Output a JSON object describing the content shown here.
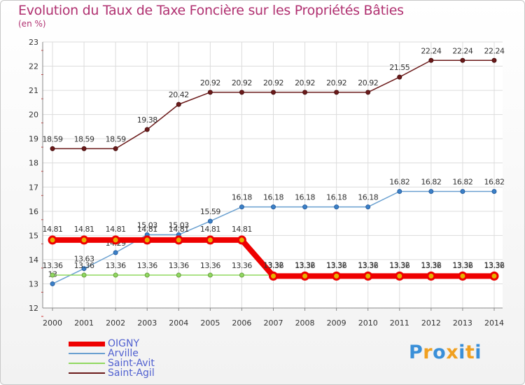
{
  "chart_data": {
    "type": "line",
    "title": "Evolution du Taux de Taxe Foncière sur les Propriétés Bâties",
    "unit_label": "(en %)",
    "xlabel": "",
    "ylabel": "",
    "ylim": [
      12,
      23
    ],
    "yticks": [
      "12",
      "13",
      "14",
      "15",
      "16",
      "17",
      "18",
      "19",
      "20",
      "21",
      "22",
      "23"
    ],
    "x": [
      "2000",
      "2001",
      "2002",
      "2003",
      "2004",
      "2005",
      "2006",
      "2007",
      "2008",
      "2009",
      "2010",
      "2011",
      "2012",
      "2013",
      "2014"
    ],
    "series": [
      {
        "name": "Saint-Agil",
        "color": "#6b1a1a",
        "values": [
          18.59,
          18.59,
          18.59,
          19.38,
          20.42,
          20.92,
          20.92,
          20.92,
          20.92,
          20.92,
          20.92,
          21.55,
          22.24,
          22.24,
          22.24
        ],
        "labels": [
          "18.59",
          "18.59",
          "18.59",
          "19.38",
          "20.42",
          "20.92",
          "20.92",
          "20.92",
          "20.92",
          "20.92",
          "20.92",
          "21.55",
          "22.24",
          "22.24",
          "22.24"
        ]
      },
      {
        "name": "Arville",
        "color": "#6aa0d0",
        "values": [
          13.0,
          13.63,
          14.29,
          15.03,
          15.03,
          15.59,
          16.18,
          16.18,
          16.18,
          16.18,
          16.18,
          16.82,
          16.82,
          16.82,
          16.82
        ],
        "labels": [
          "13",
          "13.63",
          "14.29",
          "15.03",
          "15.03",
          "15.59",
          "16.18",
          "16.18",
          "16.18",
          "16.18",
          "16.18",
          "16.82",
          "16.82",
          "16.82",
          "16.82"
        ]
      },
      {
        "name": "Saint-Avit",
        "color": "#90d860",
        "values": [
          13.36,
          13.36,
          13.36,
          13.36,
          13.36,
          13.36,
          13.36,
          13.36,
          13.36,
          13.36,
          13.36,
          13.36,
          13.36,
          13.36,
          13.36
        ],
        "labels": [
          "13.36",
          "13.36",
          "13.36",
          "13.36",
          "13.36",
          "13.36",
          "13.36",
          "13.36",
          "13.36",
          "13.36",
          "13.36",
          "13.36",
          "13.36",
          "13.36",
          "13.36"
        ]
      },
      {
        "name": "OIGNY",
        "color": "#ee0000",
        "values": [
          14.81,
          14.81,
          14.81,
          14.81,
          14.81,
          14.81,
          14.81,
          13.32,
          13.32,
          13.32,
          13.32,
          13.32,
          13.32,
          13.32,
          13.32
        ],
        "labels": [
          "14.81",
          "14.81",
          "14.81",
          "14.81",
          "14.81",
          "14.81",
          "14.81",
          "13.32",
          "13.32",
          "13.32",
          "13.32",
          "13.32",
          "13.32",
          "13.32",
          "13.32"
        ]
      }
    ],
    "legend_order": [
      "OIGNY",
      "Arville",
      "Saint-Avit",
      "Saint-Agil"
    ],
    "legend_position": "bottom-left"
  },
  "logo": {
    "letters": [
      "P",
      "r",
      "o",
      "x",
      "i",
      "t",
      "i"
    ],
    "colors": [
      "#3a8fd8",
      "#f0a020",
      "#3a8fd8",
      "#f0a020",
      "#3a8fd8",
      "#f0a020",
      "#3a8fd8"
    ]
  }
}
